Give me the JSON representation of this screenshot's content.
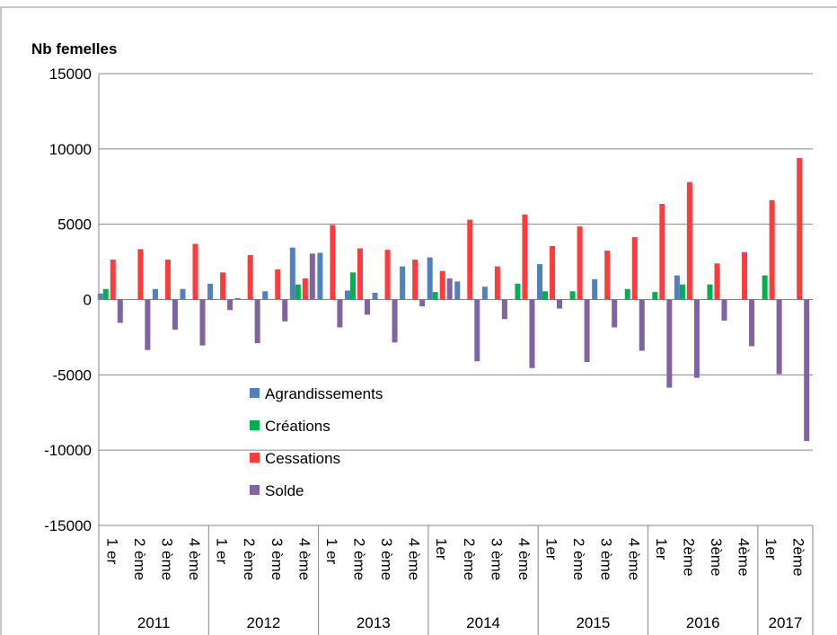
{
  "chart_data": {
    "type": "bar",
    "ylabel": "Nb femelles",
    "ylim": [
      -15000,
      15000
    ],
    "yticks": [
      "15000",
      "10000",
      "5000",
      "0",
      "-5000",
      "-10000",
      "-15000"
    ],
    "ytick_values": [
      15000,
      10000,
      5000,
      0,
      -5000,
      -10000,
      -15000
    ],
    "grid": true,
    "legend_position": "center-left",
    "categories": [
      "1 er",
      "2 ème",
      "3 ème",
      "4 ème",
      "1 er",
      "2 ème",
      "3 ème",
      "4 ème",
      "1 er",
      "2 ème",
      "3 ème",
      "4 ème",
      "1er",
      "2 ème",
      "3 ème",
      "4 ème",
      "1er",
      "2 ème",
      "3 ème",
      "4 ème",
      "1er",
      "2ème",
      "3ème",
      "4ème",
      "1er",
      "2ème"
    ],
    "groups": [
      {
        "label": "2011",
        "count": 4
      },
      {
        "label": "2012",
        "count": 4
      },
      {
        "label": "2013",
        "count": 4
      },
      {
        "label": "2014",
        "count": 4
      },
      {
        "label": "2015",
        "count": 4
      },
      {
        "label": "2016",
        "count": 4
      },
      {
        "label": "2017",
        "count": 2
      }
    ],
    "series": [
      {
        "name": "Agrandissements",
        "color": "#4f81bd",
        "values": [
          400,
          0,
          700,
          700,
          1050,
          100,
          550,
          3450,
          3100,
          600,
          450,
          2200,
          2800,
          1200,
          850,
          0,
          2350,
          0,
          1350,
          0,
          0,
          1600,
          0,
          0,
          0,
          0
        ]
      },
      {
        "name": "Créations",
        "color": "#00b050",
        "values": [
          700,
          0,
          0,
          0,
          0,
          0,
          0,
          1000,
          0,
          1800,
          0,
          0,
          500,
          0,
          0,
          1050,
          550,
          550,
          0,
          700,
          500,
          1000,
          1000,
          0,
          1600,
          0
        ]
      },
      {
        "name": "Cessations",
        "color": "#ff3b3b",
        "values": [
          2650,
          3350,
          2650,
          3700,
          1800,
          2950,
          2000,
          1400,
          4950,
          3400,
          3300,
          2650,
          1900,
          5300,
          2200,
          5650,
          3550,
          4850,
          3250,
          4150,
          6350,
          7800,
          2400,
          3150,
          6600,
          9400
        ]
      },
      {
        "name": "Solde",
        "color": "#8064a2",
        "values": [
          -1550,
          -3350,
          -2000,
          -3050,
          -700,
          -2900,
          -1450,
          3050,
          -1850,
          -1000,
          -2850,
          -450,
          1400,
          -4100,
          -1300,
          -4550,
          -600,
          -4150,
          -1850,
          -3400,
          -5850,
          -5200,
          -1400,
          -3100,
          -4950,
          -9400
        ]
      }
    ]
  }
}
